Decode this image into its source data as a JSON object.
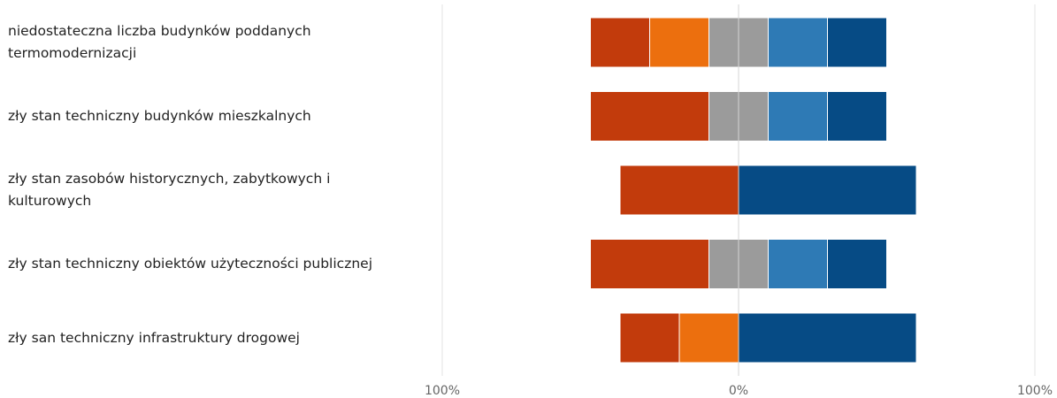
{
  "chart_data": {
    "type": "bar",
    "orientation": "horizontal",
    "layout": "diverging-stacked",
    "categories": [
      "niedostateczna liczba budynków poddanych termomodernizacji",
      "zły stan techniczny budynków mieszkalnych",
      "zły stan zasobów historycznych, zabytkowych i kulturowych",
      "zły stan techniczny obiektów użyteczności publicznej",
      "zły san techniczny infrastruktury drogowej"
    ],
    "series": [
      {
        "color": "#c23b0c",
        "values": [
          20,
          40,
          40,
          40,
          20
        ]
      },
      {
        "color": "#ec6f0e",
        "values": [
          20,
          0,
          0,
          0,
          20
        ]
      },
      {
        "color": "#9b9b9b",
        "values": [
          20,
          20,
          0,
          20,
          0
        ]
      },
      {
        "color": "#2e7ab5",
        "values": [
          20,
          20,
          0,
          20,
          0
        ]
      },
      {
        "color": "#064b85",
        "values": [
          20,
          20,
          60,
          20,
          60
        ]
      }
    ],
    "neutral_series_index": 2,
    "xlim": [
      -100,
      100
    ],
    "x_ticks": [
      "100%",
      "0%",
      "100%"
    ],
    "grid": true,
    "legend": "none"
  }
}
